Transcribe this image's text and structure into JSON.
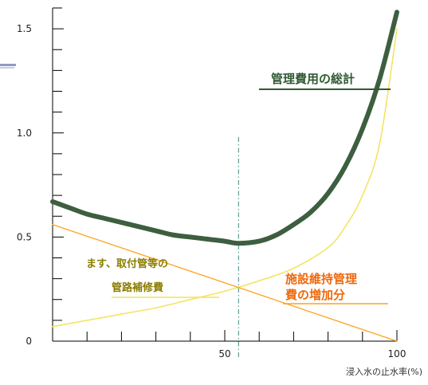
{
  "chart_data": {
    "type": "line",
    "xlabel": "浸入水の止水率(%)",
    "ylabel": "",
    "xlim": [
      0,
      100
    ],
    "ylim": [
      0,
      1.6
    ],
    "x_ticks": [
      50,
      100
    ],
    "x_tick_labels": [
      "50",
      "100"
    ],
    "y_ticks": [
      0,
      0.5,
      1.0,
      1.5
    ],
    "y_tick_labels": [
      "0",
      "0.5",
      "1.0",
      "1.5"
    ],
    "grid": false,
    "legend": "none",
    "series": [
      {
        "name": "管理費用の総計",
        "color": "#3d5e3f",
        "x": [
          0,
          5,
          10,
          15,
          20,
          25,
          30,
          35,
          40,
          45,
          50,
          54,
          60,
          65,
          70,
          75,
          80,
          85,
          90,
          95,
          100
        ],
        "y": [
          0.67,
          0.64,
          0.61,
          0.59,
          0.57,
          0.55,
          0.53,
          0.51,
          0.5,
          0.49,
          0.48,
          0.47,
          0.48,
          0.51,
          0.56,
          0.62,
          0.71,
          0.84,
          1.02,
          1.26,
          1.58
        ]
      },
      {
        "name": "ます、取付管等の管路補修費",
        "color": "#ffa21f",
        "x": [
          0,
          100
        ],
        "y": [
          0.56,
          0.0
        ]
      },
      {
        "name": "施設維持管理費の増加分",
        "color": "#f3e35a",
        "x": [
          0,
          10,
          20,
          30,
          40,
          50,
          60,
          70,
          80,
          85,
          90,
          95,
          100
        ],
        "y": [
          0.07,
          0.1,
          0.13,
          0.16,
          0.2,
          0.24,
          0.29,
          0.35,
          0.45,
          0.55,
          0.7,
          0.95,
          1.5
        ]
      }
    ],
    "reference_line": {
      "x": 54,
      "color": "#3d8a80"
    },
    "annotations": {
      "total": "管理費用の総計",
      "repair_line1": "ます、取付管等の",
      "repair_line2": "管路補修費",
      "maint_line1": "施設維持管理",
      "maint_line2": "費の増加分"
    }
  }
}
